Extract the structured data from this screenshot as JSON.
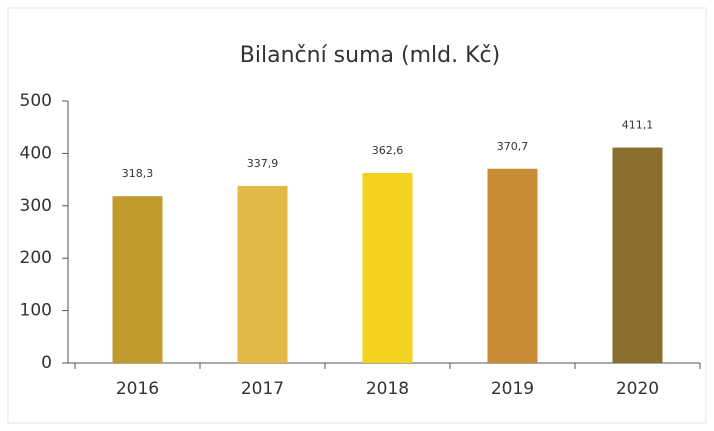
{
  "chart_data": {
    "type": "bar",
    "title": "Bilanční suma (mld. Kč)",
    "categories": [
      "2016",
      "2017",
      "2018",
      "2019",
      "2020"
    ],
    "values": [
      318.3,
      337.9,
      362.6,
      370.7,
      411.1
    ],
    "value_labels": [
      "318,3",
      "337,9",
      "362,6",
      "370,7",
      "411,1"
    ],
    "colors": [
      "#c09a2c",
      "#e2b947",
      "#f3d320",
      "#c98b34",
      "#8b6f2c"
    ],
    "ylim": [
      0,
      500
    ],
    "yticks": [
      0,
      100,
      200,
      300,
      400,
      500
    ],
    "grid": false
  }
}
